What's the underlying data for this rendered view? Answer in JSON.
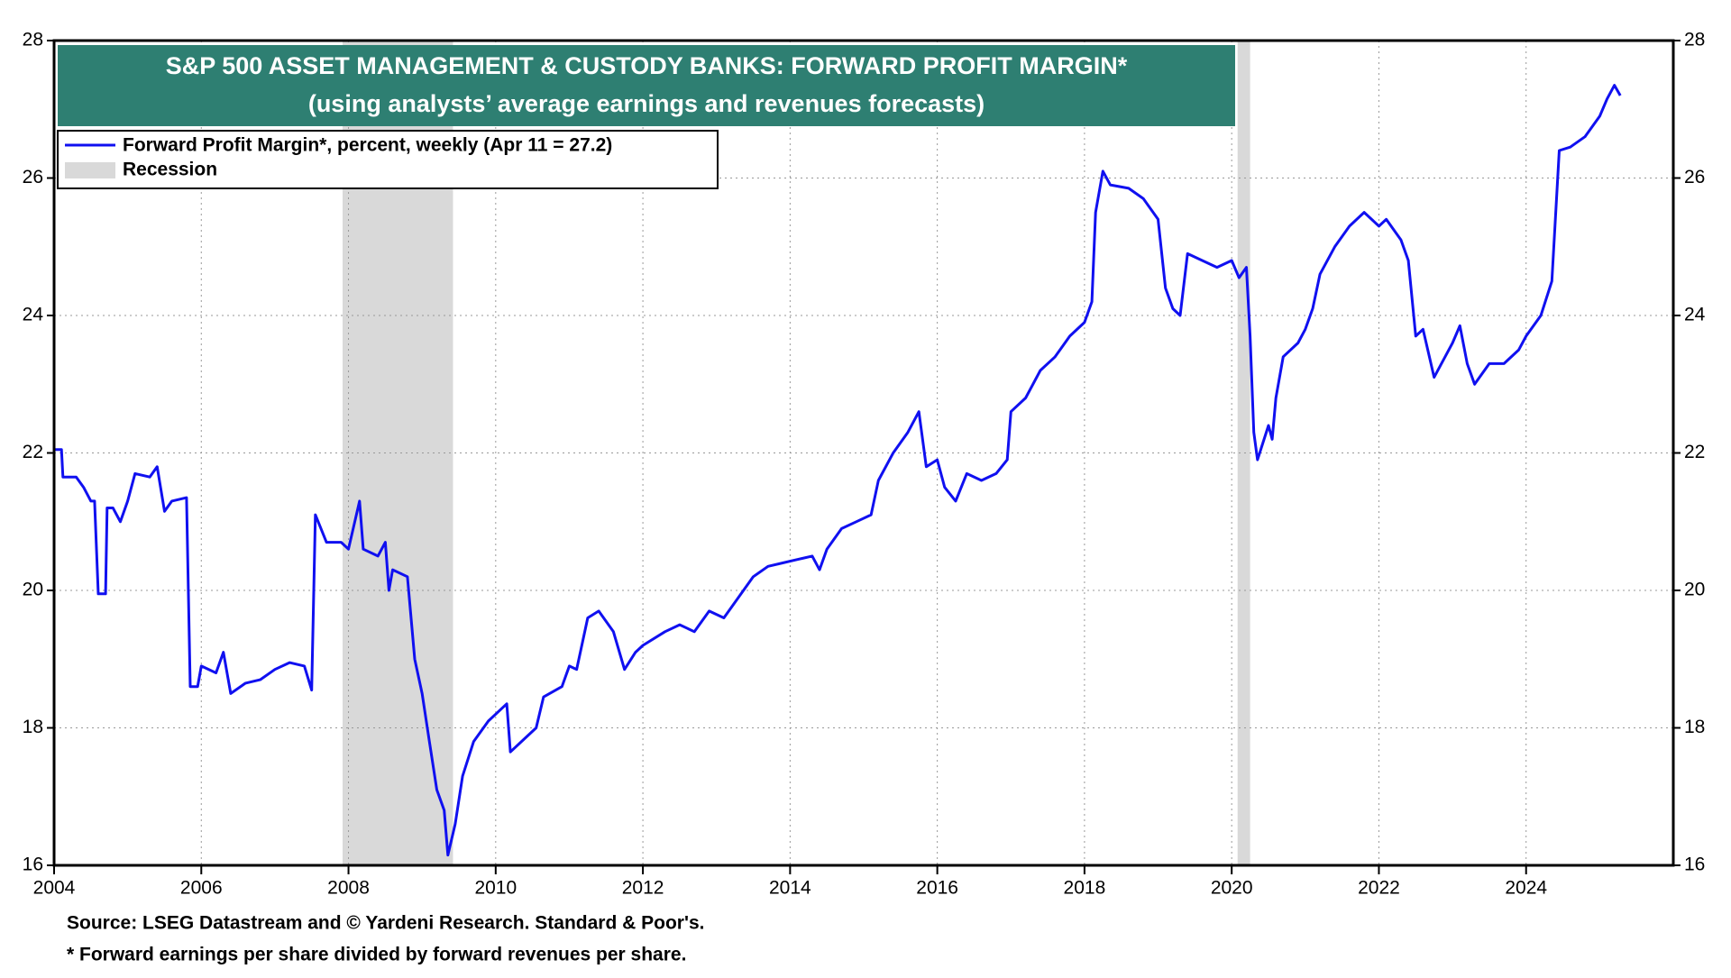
{
  "chart_data": {
    "type": "line",
    "title": "S&P 500 ASSET MANAGEMENT & CUSTODY BANKS: FORWARD PROFIT MARGIN*",
    "subtitle": "(using analysts’ average earnings and revenues forecasts)",
    "footnotes": [
      "Source: LSEG Datastream and © Yardeni Research. Standard & Poor's.",
      "* Forward earnings per share divided by forward revenues per share."
    ],
    "x": [
      2004.0,
      2004.1,
      2004.12,
      2004.3,
      2004.4,
      2004.5,
      2004.55,
      2004.6,
      2004.7,
      2004.72,
      2004.8,
      2004.9,
      2005.0,
      2005.1,
      2005.3,
      2005.4,
      2005.5,
      2005.6,
      2005.8,
      2005.85,
      2005.95,
      2006.0,
      2006.2,
      2006.3,
      2006.4,
      2006.6,
      2006.8,
      2007.0,
      2007.2,
      2007.4,
      2007.5,
      2007.55,
      2007.7,
      2007.9,
      2008.0,
      2008.15,
      2008.2,
      2008.4,
      2008.5,
      2008.55,
      2008.6,
      2008.8,
      2008.9,
      2009.0,
      2009.1,
      2009.2,
      2009.3,
      2009.35,
      2009.45,
      2009.55,
      2009.7,
      2009.9,
      2010.0,
      2010.15,
      2010.2,
      2010.4,
      2010.55,
      2010.65,
      2010.9,
      2011.0,
      2011.1,
      2011.25,
      2011.4,
      2011.6,
      2011.75,
      2011.9,
      2012.0,
      2012.3,
      2012.5,
      2012.7,
      2012.9,
      2013.1,
      2013.3,
      2013.5,
      2013.7,
      2013.9,
      2014.1,
      2014.3,
      2014.4,
      2014.5,
      2014.7,
      2014.9,
      2015.1,
      2015.2,
      2015.4,
      2015.6,
      2015.75,
      2015.85,
      2016.0,
      2016.1,
      2016.25,
      2016.4,
      2016.6,
      2016.8,
      2016.95,
      2017.0,
      2017.2,
      2017.4,
      2017.6,
      2017.8,
      2018.0,
      2018.1,
      2018.15,
      2018.25,
      2018.35,
      2018.6,
      2018.8,
      2019.0,
      2019.1,
      2019.2,
      2019.3,
      2019.4,
      2019.6,
      2019.8,
      2020.0,
      2020.1,
      2020.2,
      2020.25,
      2020.3,
      2020.35,
      2020.5,
      2020.55,
      2020.6,
      2020.7,
      2020.9,
      2021.0,
      2021.1,
      2021.2,
      2021.4,
      2021.6,
      2021.8,
      2022.0,
      2022.1,
      2022.3,
      2022.4,
      2022.5,
      2022.6,
      2022.75,
      2022.9,
      2023.0,
      2023.1,
      2023.2,
      2023.3,
      2023.5,
      2023.7,
      2023.9,
      2024.0,
      2024.2,
      2024.35,
      2024.45,
      2024.6,
      2024.8,
      2025.0,
      2025.1,
      2025.2,
      2025.28
    ],
    "series": [
      {
        "name": "Forward Profit Margin*, percent, weekly (Apr 11 = 27.2)",
        "color": "#1010f0",
        "values": [
          22.05,
          22.05,
          21.65,
          21.65,
          21.5,
          21.3,
          21.3,
          19.95,
          19.95,
          21.2,
          21.2,
          21.0,
          21.3,
          21.7,
          21.65,
          21.8,
          21.15,
          21.3,
          21.35,
          18.6,
          18.6,
          18.9,
          18.8,
          19.1,
          18.5,
          18.65,
          18.7,
          18.85,
          18.95,
          18.9,
          18.55,
          21.1,
          20.7,
          20.7,
          20.6,
          21.3,
          20.6,
          20.5,
          20.7,
          20.0,
          20.3,
          20.2,
          19.0,
          18.5,
          17.8,
          17.1,
          16.8,
          16.15,
          16.6,
          17.3,
          17.8,
          18.1,
          18.2,
          18.35,
          17.65,
          17.85,
          18.0,
          18.45,
          18.6,
          18.9,
          18.85,
          19.6,
          19.7,
          19.4,
          18.85,
          19.1,
          19.2,
          19.4,
          19.5,
          19.4,
          19.7,
          19.6,
          19.9,
          20.2,
          20.35,
          20.4,
          20.45,
          20.5,
          20.3,
          20.6,
          20.9,
          21.0,
          21.1,
          21.6,
          22.0,
          22.3,
          22.6,
          21.8,
          21.9,
          21.5,
          21.3,
          21.7,
          21.6,
          21.7,
          21.9,
          22.6,
          22.8,
          23.2,
          23.4,
          23.7,
          23.9,
          24.2,
          25.5,
          26.1,
          25.9,
          25.85,
          25.7,
          25.4,
          24.4,
          24.1,
          24.0,
          24.9,
          24.8,
          24.7,
          24.8,
          24.55,
          24.7,
          23.7,
          22.3,
          21.9,
          22.4,
          22.2,
          22.8,
          23.4,
          23.6,
          23.8,
          24.1,
          24.6,
          25.0,
          25.3,
          25.5,
          25.3,
          25.4,
          25.1,
          24.8,
          23.7,
          23.8,
          23.1,
          23.4,
          23.6,
          23.85,
          23.3,
          23.0,
          23.3,
          23.3,
          23.5,
          23.7,
          24.0,
          24.5,
          26.4,
          26.45,
          26.6,
          26.9,
          27.15,
          27.35,
          27.2
        ]
      }
    ],
    "recession": {
      "name": "Recession",
      "color": "#d9d9d9",
      "spans": [
        [
          2007.92,
          2009.42
        ],
        [
          2020.08,
          2020.25
        ]
      ]
    },
    "xlim": [
      2004,
      2026
    ],
    "xticks": [
      2004,
      2006,
      2008,
      2010,
      2012,
      2014,
      2016,
      2018,
      2020,
      2022,
      2024
    ],
    "ylim": [
      16,
      28
    ],
    "yticks": [
      16,
      18,
      20,
      22,
      24,
      26,
      28
    ],
    "grid": true
  }
}
